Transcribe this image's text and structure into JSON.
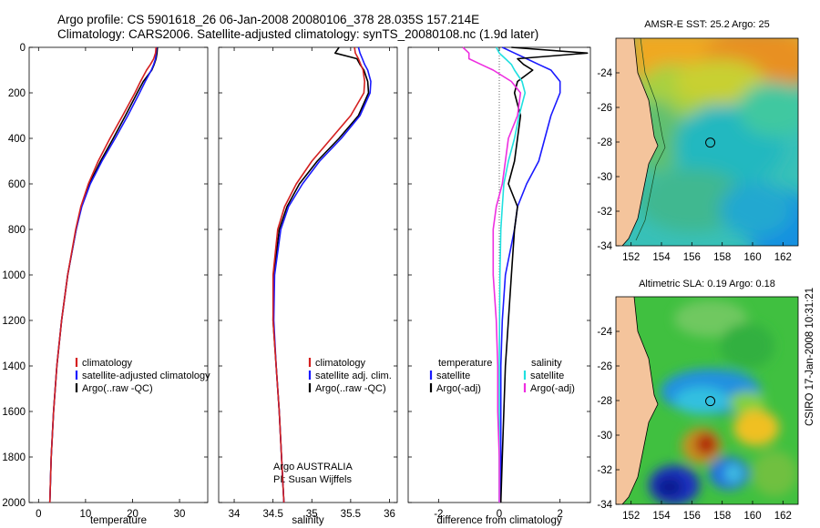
{
  "header": {
    "line1": "Argo profile: CS 5901618_26 06-Jan-2008 20080106_378 28.035S 157.214E",
    "line2": "Climatology: CARS2006. Satellite-adjusted climatology: synTS_20080108.nc (1.9d later)"
  },
  "credits": {
    "agency": "Argo AUSTRALIA",
    "pi": "PI: Susan Wijffels",
    "stamp": "CSIRO 17-Jan-2008 10:31:21"
  },
  "colors": {
    "climatology": "#d42020",
    "satellite": "#1a1aff",
    "argo": "#000000",
    "sat_salinity": "#20e0e0",
    "argo_salinity": "#ee2ee0",
    "land": "#f4c49c"
  },
  "chart_data": [
    {
      "type": "line",
      "name": "temperature-profile",
      "xlabel": "temperature",
      "ylabel": "",
      "xlim": [
        -2,
        36
      ],
      "ylim": [
        2000,
        0
      ],
      "xticks": [
        0,
        10,
        20,
        30
      ],
      "yticks": [
        0,
        200,
        400,
        600,
        800,
        1000,
        1200,
        1400,
        1600,
        1800,
        2000
      ],
      "y": [
        0,
        25,
        50,
        75,
        100,
        150,
        200,
        300,
        400,
        500,
        600,
        700,
        800,
        1000,
        1200,
        1400,
        1600,
        1800,
        2000
      ],
      "series": [
        {
          "name": "climatology",
          "color": "#d42020",
          "values": [
            25.0,
            24.9,
            24.5,
            23.8,
            23.0,
            21.7,
            20.5,
            17.9,
            15.2,
            12.7,
            10.6,
            9.0,
            7.9,
            6.2,
            4.9,
            3.9,
            3.2,
            2.7,
            2.4
          ]
        },
        {
          "name": "satellite-adjusted climatology",
          "color": "#1a1aff",
          "values": [
            25.1,
            25.0,
            24.9,
            24.5,
            24.0,
            22.7,
            21.5,
            19.0,
            16.3,
            13.5,
            11.0,
            9.2,
            8.0,
            6.2,
            4.9,
            3.9,
            3.2,
            2.7,
            2.4
          ]
        },
        {
          "name": "Argo(..raw -QC)",
          "color": "#000000",
          "values": [
            25.3,
            25.2,
            25.0,
            24.6,
            24.1,
            22.3,
            21.0,
            18.5,
            15.9,
            13.2,
            10.8,
            9.1,
            8.0,
            6.2,
            4.9,
            3.9,
            3.2,
            2.7,
            2.4
          ]
        }
      ],
      "legend": [
        "climatology",
        "satellite-adjusted climatology",
        "Argo(..raw -QC)"
      ],
      "legend_position": "lower-center"
    },
    {
      "type": "line",
      "name": "salinity-profile",
      "xlabel": "salinity",
      "xlim": [
        33.8,
        36.1
      ],
      "ylim": [
        2000,
        0
      ],
      "xticks": [
        34,
        34.5,
        35,
        35.5,
        36
      ],
      "y": [
        0,
        25,
        50,
        75,
        100,
        150,
        200,
        300,
        400,
        500,
        600,
        700,
        800,
        1000,
        1200,
        1400,
        1600,
        1800,
        2000
      ],
      "series": [
        {
          "name": "climatology",
          "color": "#d42020",
          "values": [
            35.55,
            35.56,
            35.6,
            35.63,
            35.66,
            35.68,
            35.67,
            35.5,
            35.25,
            35.0,
            34.8,
            34.65,
            34.56,
            34.5,
            34.5,
            34.54,
            34.58,
            34.61,
            34.64
          ]
        },
        {
          "name": "satellite adj. clim.",
          "color": "#1a1aff",
          "values": [
            35.6,
            35.62,
            35.65,
            35.68,
            35.72,
            35.76,
            35.75,
            35.62,
            35.38,
            35.1,
            34.88,
            34.7,
            34.6,
            34.52,
            34.51,
            34.54,
            34.58,
            34.61,
            34.64
          ]
        },
        {
          "name": "Argo(..raw -QC)",
          "color": "#000000",
          "values": [
            35.35,
            35.3,
            35.58,
            35.62,
            35.67,
            35.72,
            35.73,
            35.6,
            35.35,
            35.07,
            34.84,
            34.68,
            34.58,
            34.51,
            34.5,
            34.54,
            34.58,
            34.61,
            34.64
          ]
        }
      ],
      "legend": [
        "climatology",
        "satellite adj. clim.",
        "Argo(..raw -QC)"
      ],
      "legend_position": "lower-center"
    },
    {
      "type": "line",
      "name": "difference-profile",
      "xlabel": "difference from climatology",
      "xlim": [
        -3,
        3
      ],
      "ylim": [
        2000,
        0
      ],
      "xticks": [
        -2,
        0,
        2
      ],
      "y": [
        0,
        25,
        50,
        75,
        100,
        150,
        200,
        300,
        400,
        500,
        600,
        700,
        800,
        1000,
        1200,
        1400,
        1600,
        1800,
        2000
      ],
      "legend_titles": {
        "left": "temperature",
        "right": "salinity"
      },
      "series": [
        {
          "name": "satellite",
          "group": "temperature",
          "color": "#1a1aff",
          "values": [
            0.1,
            0.5,
            0.9,
            1.3,
            1.7,
            2.0,
            2.0,
            1.7,
            1.5,
            1.3,
            0.9,
            0.6,
            0.5,
            0.2,
            0.1,
            0.05,
            0.05,
            0.05,
            0.05
          ]
        },
        {
          "name": "Argo(-adj)",
          "group": "temperature",
          "color": "#000000",
          "values": [
            0.4,
            2.9,
            0.6,
            0.8,
            1.1,
            0.6,
            0.5,
            0.7,
            0.6,
            0.5,
            0.3,
            0.6,
            0.5,
            0.4,
            0.3,
            0.2,
            0.15,
            0.1,
            0.05
          ]
        },
        {
          "name": "satellite",
          "group": "salinity",
          "color": "#20e0e0",
          "values": [
            -0.1,
            0.0,
            0.2,
            0.4,
            0.5,
            0.75,
            0.85,
            0.65,
            0.5,
            0.3,
            0.15,
            0.1,
            0.05,
            0.02,
            0.01,
            0.0,
            0.0,
            0.0,
            0.0
          ]
        },
        {
          "name": "Argo(-adj)",
          "group": "salinity",
          "color": "#ee2ee0",
          "values": [
            -1.2,
            -1.0,
            -1.0,
            -0.6,
            -0.2,
            0.4,
            0.7,
            0.6,
            0.3,
            0.2,
            0.1,
            -0.1,
            -0.2,
            -0.2,
            -0.1,
            -0.05,
            -0.05,
            0.0,
            0.0
          ]
        }
      ],
      "legend": [
        "satellite",
        "Argo(-adj)",
        "satellite",
        "Argo(-adj)"
      ],
      "legend_position": "lower-center"
    },
    {
      "type": "heatmap",
      "name": "sst-map",
      "title": "AMSR-E SST: 25.2  Argo: 25",
      "xlim": [
        151,
        163
      ],
      "ylim": [
        -34,
        -22
      ],
      "xticks": [
        152,
        154,
        156,
        158,
        160,
        162
      ],
      "yticks": [
        -24,
        -26,
        -28,
        -30,
        -32,
        -34
      ],
      "argo_position": {
        "lon": 157.214,
        "lat": -28.035
      }
    },
    {
      "type": "heatmap",
      "name": "sla-map",
      "title": "Altimetric SLA: 0.19  Argo: 0.18",
      "xlim": [
        151,
        163
      ],
      "ylim": [
        -34,
        -22
      ],
      "xticks": [
        152,
        154,
        156,
        158,
        160,
        162
      ],
      "yticks": [
        -24,
        -26,
        -28,
        -30,
        -32,
        -34
      ],
      "argo_position": {
        "lon": 157.214,
        "lat": -28.035
      }
    }
  ]
}
